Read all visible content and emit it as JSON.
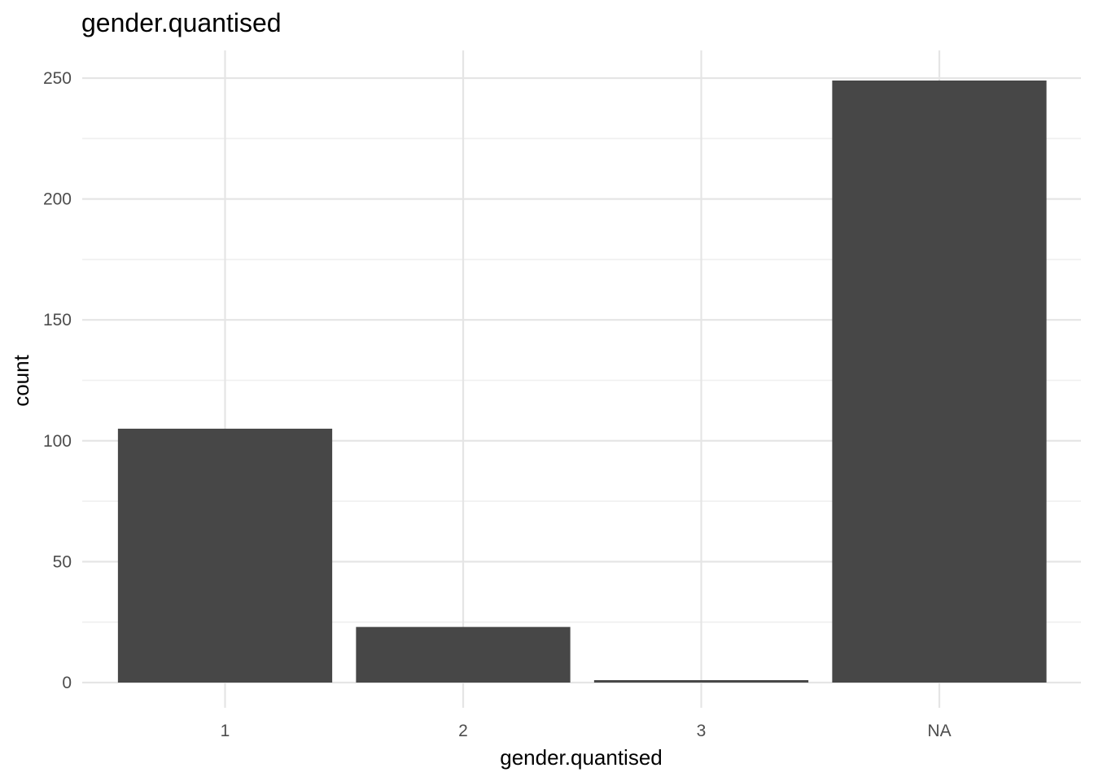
{
  "chart_data": {
    "type": "bar",
    "title": "gender.quantised",
    "xlabel": "gender.quantised",
    "ylabel": "count",
    "categories": [
      "1",
      "2",
      "3",
      "NA"
    ],
    "values": [
      105,
      23,
      1,
      249
    ],
    "ylim": [
      0,
      250
    ],
    "yticks": [
      0,
      50,
      100,
      150,
      200,
      250
    ],
    "grid": true,
    "legend": "none",
    "bar_color": "#474747"
  }
}
